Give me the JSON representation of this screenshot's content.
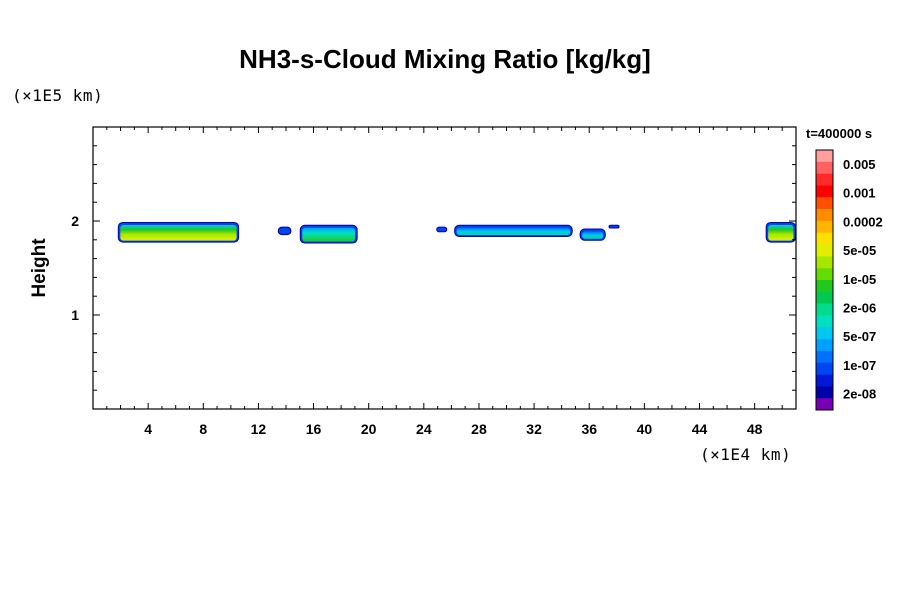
{
  "chart_data": {
    "type": "heatmap",
    "title": "NH3-s-Cloud Mixing Ratio [kg/kg]",
    "xlabel": "",
    "xunit": "(×1E4 km)",
    "ylabel": "Height",
    "yunit": "(×1E5 km)",
    "time_label": "t=400000 s",
    "xlim": [
      0,
      51
    ],
    "ylim": [
      0,
      3
    ],
    "x_ticks": [
      4,
      8,
      12,
      16,
      20,
      24,
      28,
      32,
      36,
      40,
      44,
      48
    ],
    "y_ticks": [
      1,
      2
    ],
    "grid": false,
    "colorbar": {
      "labels": [
        "0.005",
        "0.001",
        "0.0002",
        "5e-05",
        "1e-05",
        "2e-06",
        "5e-07",
        "1e-07",
        "2e-08"
      ],
      "colors": [
        "#ff9f9f",
        "#ff6060",
        "#ff2a2a",
        "#ff0000",
        "#ff5000",
        "#ff8c00",
        "#ffb400",
        "#ffdf00",
        "#e0ef00",
        "#a8e800",
        "#64dc00",
        "#20c820",
        "#00c850",
        "#00dc8c",
        "#00e0c0",
        "#00c8ee",
        "#00a0ff",
        "#0070ff",
        "#0046f0",
        "#0018d8",
        "#0000a8",
        "#7800b4"
      ]
    },
    "clouds": [
      {
        "x_start": 1.8,
        "x_end": 10.6,
        "y_bottom": 1.77,
        "y_top": 1.99,
        "core": "5e-05"
      },
      {
        "x_start": 13.4,
        "x_end": 14.4,
        "y_bottom": 1.85,
        "y_top": 1.94,
        "core": "2e-08"
      },
      {
        "x_start": 15.0,
        "x_end": 19.2,
        "y_bottom": 1.76,
        "y_top": 1.96,
        "core": "1e-05"
      },
      {
        "x_start": 24.9,
        "x_end": 25.7,
        "y_bottom": 1.88,
        "y_top": 1.94,
        "core": "2e-08"
      },
      {
        "x_start": 26.2,
        "x_end": 34.8,
        "y_bottom": 1.83,
        "y_top": 1.96,
        "core": "2e-06"
      },
      {
        "x_start": 35.3,
        "x_end": 37.2,
        "y_bottom": 1.79,
        "y_top": 1.92,
        "core": "2e-06"
      },
      {
        "x_start": 37.4,
        "x_end": 38.2,
        "y_bottom": 1.92,
        "y_top": 1.96,
        "core": "2e-08"
      },
      {
        "x_start": 48.8,
        "x_end": 51.0,
        "y_bottom": 1.77,
        "y_top": 1.99,
        "core": "5e-05"
      }
    ]
  }
}
